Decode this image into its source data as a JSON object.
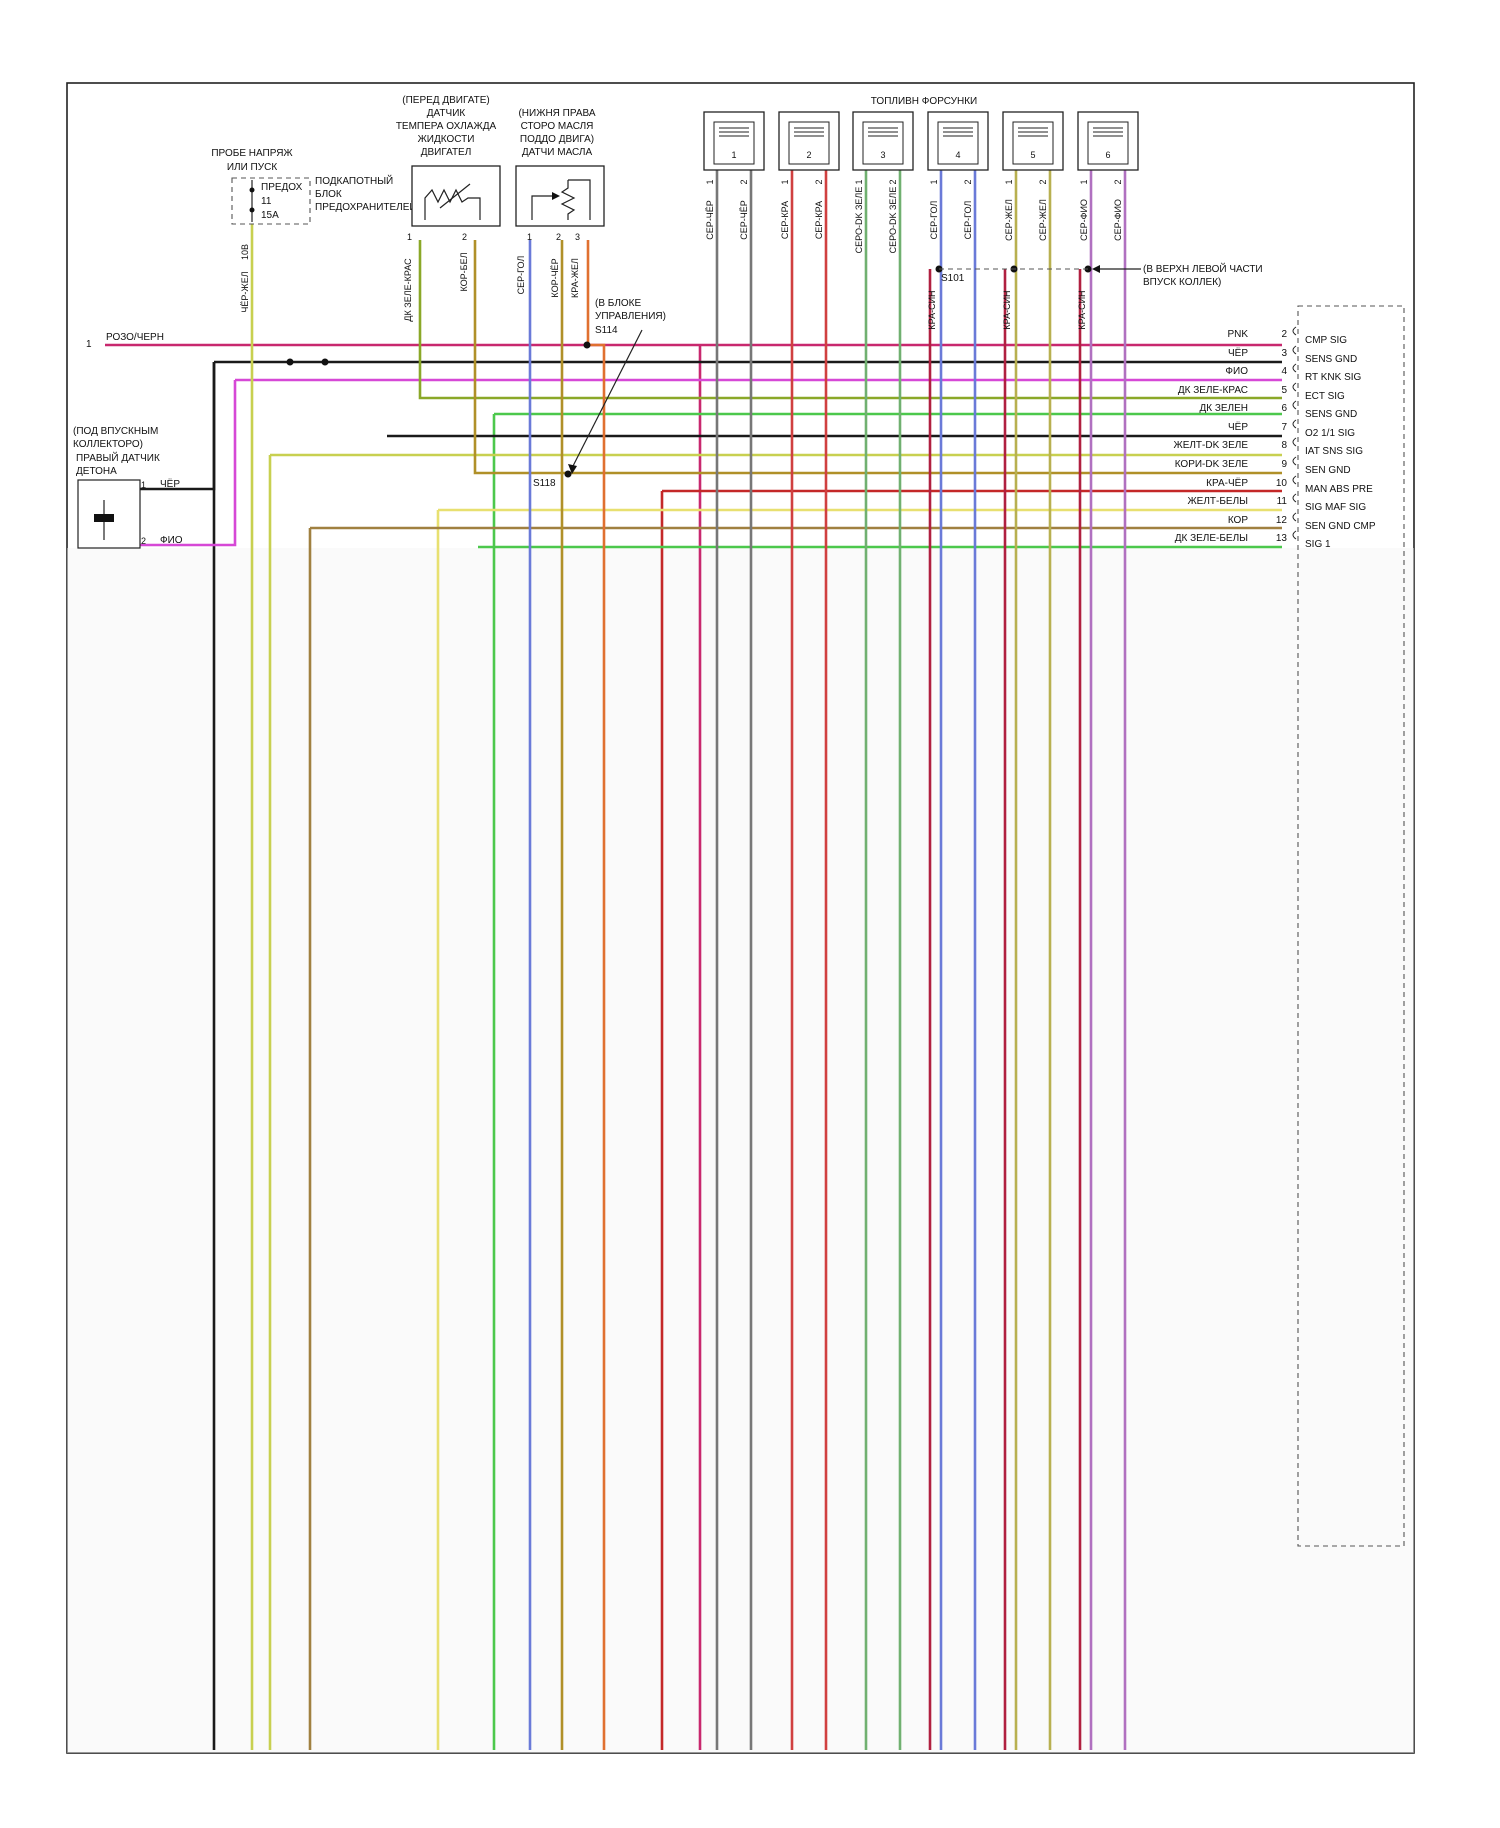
{
  "colors": {
    "pnk": "#c8286e",
    "black": "#1a1a1a",
    "violet": "#d648d6",
    "dkgreen_red": "#8aa828",
    "dkgreen": "#4cc84c",
    "yellow_dkgreen": "#c8d050",
    "brown_dkgreen": "#b09028",
    "red_black": "#c42828",
    "yellow_white": "#e8e070",
    "brown": "#a08040",
    "gray": "#888888",
    "blue_gray": "#6a7ad8",
    "orange": "#e07030",
    "gray_black": "#777777",
    "red": "#d04040",
    "gray_dkgreen": "#70b070",
    "red_blue": "#b02040",
    "gray_yellow": "#b8b050",
    "gray_violet": "#b070c0"
  },
  "header": {
    "injectors_title": "ТОПЛИВН ФОРСУНКИ"
  },
  "fuse": {
    "title_line1": "ПРОБЕ НАПРЯЖ",
    "title_line2": "ИЛИ ПУСК",
    "label_line1": "ПРЕДОХ",
    "label_line2": "11",
    "label_line3": "15A",
    "block_line1": "ПОДКАПОТНЫЙ",
    "block_line2": "БЛОК",
    "block_line3": "ПРЕДОХРАНИТЕЛЕЙ",
    "pin": "10B",
    "wire": "ЧЁР-ЖЕЛ"
  },
  "ect_sensor": {
    "line1": "(ПЕРЕД ДВИГАТЕ)",
    "line2": "ДАТЧИК",
    "line3": "ТЕМПЕРА ОХЛАЖДА",
    "line4": "ЖИДКОСТИ",
    "line5": "ДВИГАТЕЛ",
    "pin1": "1",
    "pin2": "2",
    "wire1": "ДК ЗЕЛЕ-КРАС",
    "wire2": "КОР-БЕЛ"
  },
  "oil_sensor": {
    "line1": "(НИЖНЯ ПРАВА",
    "line2": "СТОРО МАСЛЯ",
    "line3": "ПОДДО ДВИГА)",
    "line4": "ДАТЧИ МАСЛА",
    "pin1": "1",
    "pin2": "2",
    "pin3": "3",
    "wire1": "СЕР-ГОЛ",
    "wire2": "КОР-ЧЁР",
    "wire3": "КРА-ЖЕЛ"
  },
  "injectors": [
    {
      "num": "1",
      "wire1": "СЕР-ЧЁР",
      "wire2": "СЕР-ЧЁР"
    },
    {
      "num": "2",
      "wire1": "СЕР-КРА",
      "wire2": "СЕР-КРА"
    },
    {
      "num": "3",
      "wire1": "СЕРО-DK ЗЕЛЕ",
      "wire2": "СЕРО-DK ЗЕЛЕ"
    },
    {
      "num": "4",
      "wire1": "СЕР-ГОЛ",
      "wire2": "СЕР-ГОЛ"
    },
    {
      "num": "5",
      "wire1": "СЕР-ЖЕЛ",
      "wire2": "СЕР-ЖЕЛ"
    },
    {
      "num": "6",
      "wire1": "СЕР-ФИО",
      "wire2": "СЕР-ФИО"
    }
  ],
  "injector_pin1": "1",
  "injector_pin2": "2",
  "splices": {
    "s101": "S101",
    "s114": "S114",
    "s118": "S118",
    "s114_note_line1": "(В БЛОКЕ",
    "s114_note_line2": "УПРАВЛЕНИЯ)",
    "left_manifold_line1": "(В ВЕРХН ЛЕВОЙ ЧАСТИ",
    "left_manifold_line2": "ВПУСК КОЛЛЕК)"
  },
  "red_blue_wires": [
    "КРА-СИН",
    "КРА-СИН",
    "КРА-СИН"
  ],
  "knock_sensor": {
    "line1": "(ПОД ВПУСКНЫМ",
    "line2": "КОЛЛЕКТОРО)",
    "line3": "ПРАВЫЙ ДАТЧИК",
    "line4": "ДЕТОНА",
    "pin1": "1",
    "pin2": "2",
    "wire1": "ЧЁР",
    "wire2": "ФИО"
  },
  "left_wire": {
    "pin": "1",
    "label": "РОЗО/ЧЕРН"
  },
  "connector": [
    {
      "wire": "PNK",
      "pin": "2",
      "signal": "CMP SIG"
    },
    {
      "wire": "ЧЁР",
      "pin": "3",
      "signal": "SENS GND"
    },
    {
      "wire": "ФИО",
      "pin": "4",
      "signal": "RT KNK SIG"
    },
    {
      "wire": "ДК ЗЕЛЕ-КРАС",
      "pin": "5",
      "signal": "ECT SIG"
    },
    {
      "wire": "ДК ЗЕЛЕН",
      "pin": "6",
      "signal": "SENS GND"
    },
    {
      "wire": "ЧЁР",
      "pin": "7",
      "signal": "O2 1/1 SIG"
    },
    {
      "wire": "ЖЕЛТ-DK ЗЕЛЕ",
      "pin": "8",
      "signal": "IAT SNS SIG"
    },
    {
      "wire": "КОРИ-DK ЗЕЛЕ",
      "pin": "9",
      "signal": "SEN GND"
    },
    {
      "wire": "КРА-ЧЁР",
      "pin": "10",
      "signal": "MAN ABS PRE"
    },
    {
      "wire": "ЖЕЛТ-БЕЛЫ",
      "pin": "11",
      "signal": "SIG MAF SIG"
    },
    {
      "wire": "КОР",
      "pin": "12",
      "signal": "SEN GND CMP"
    },
    {
      "wire": "ДК ЗЕЛЕ-БЕЛЫ",
      "pin": "13",
      "signal": "SIG 1"
    }
  ]
}
